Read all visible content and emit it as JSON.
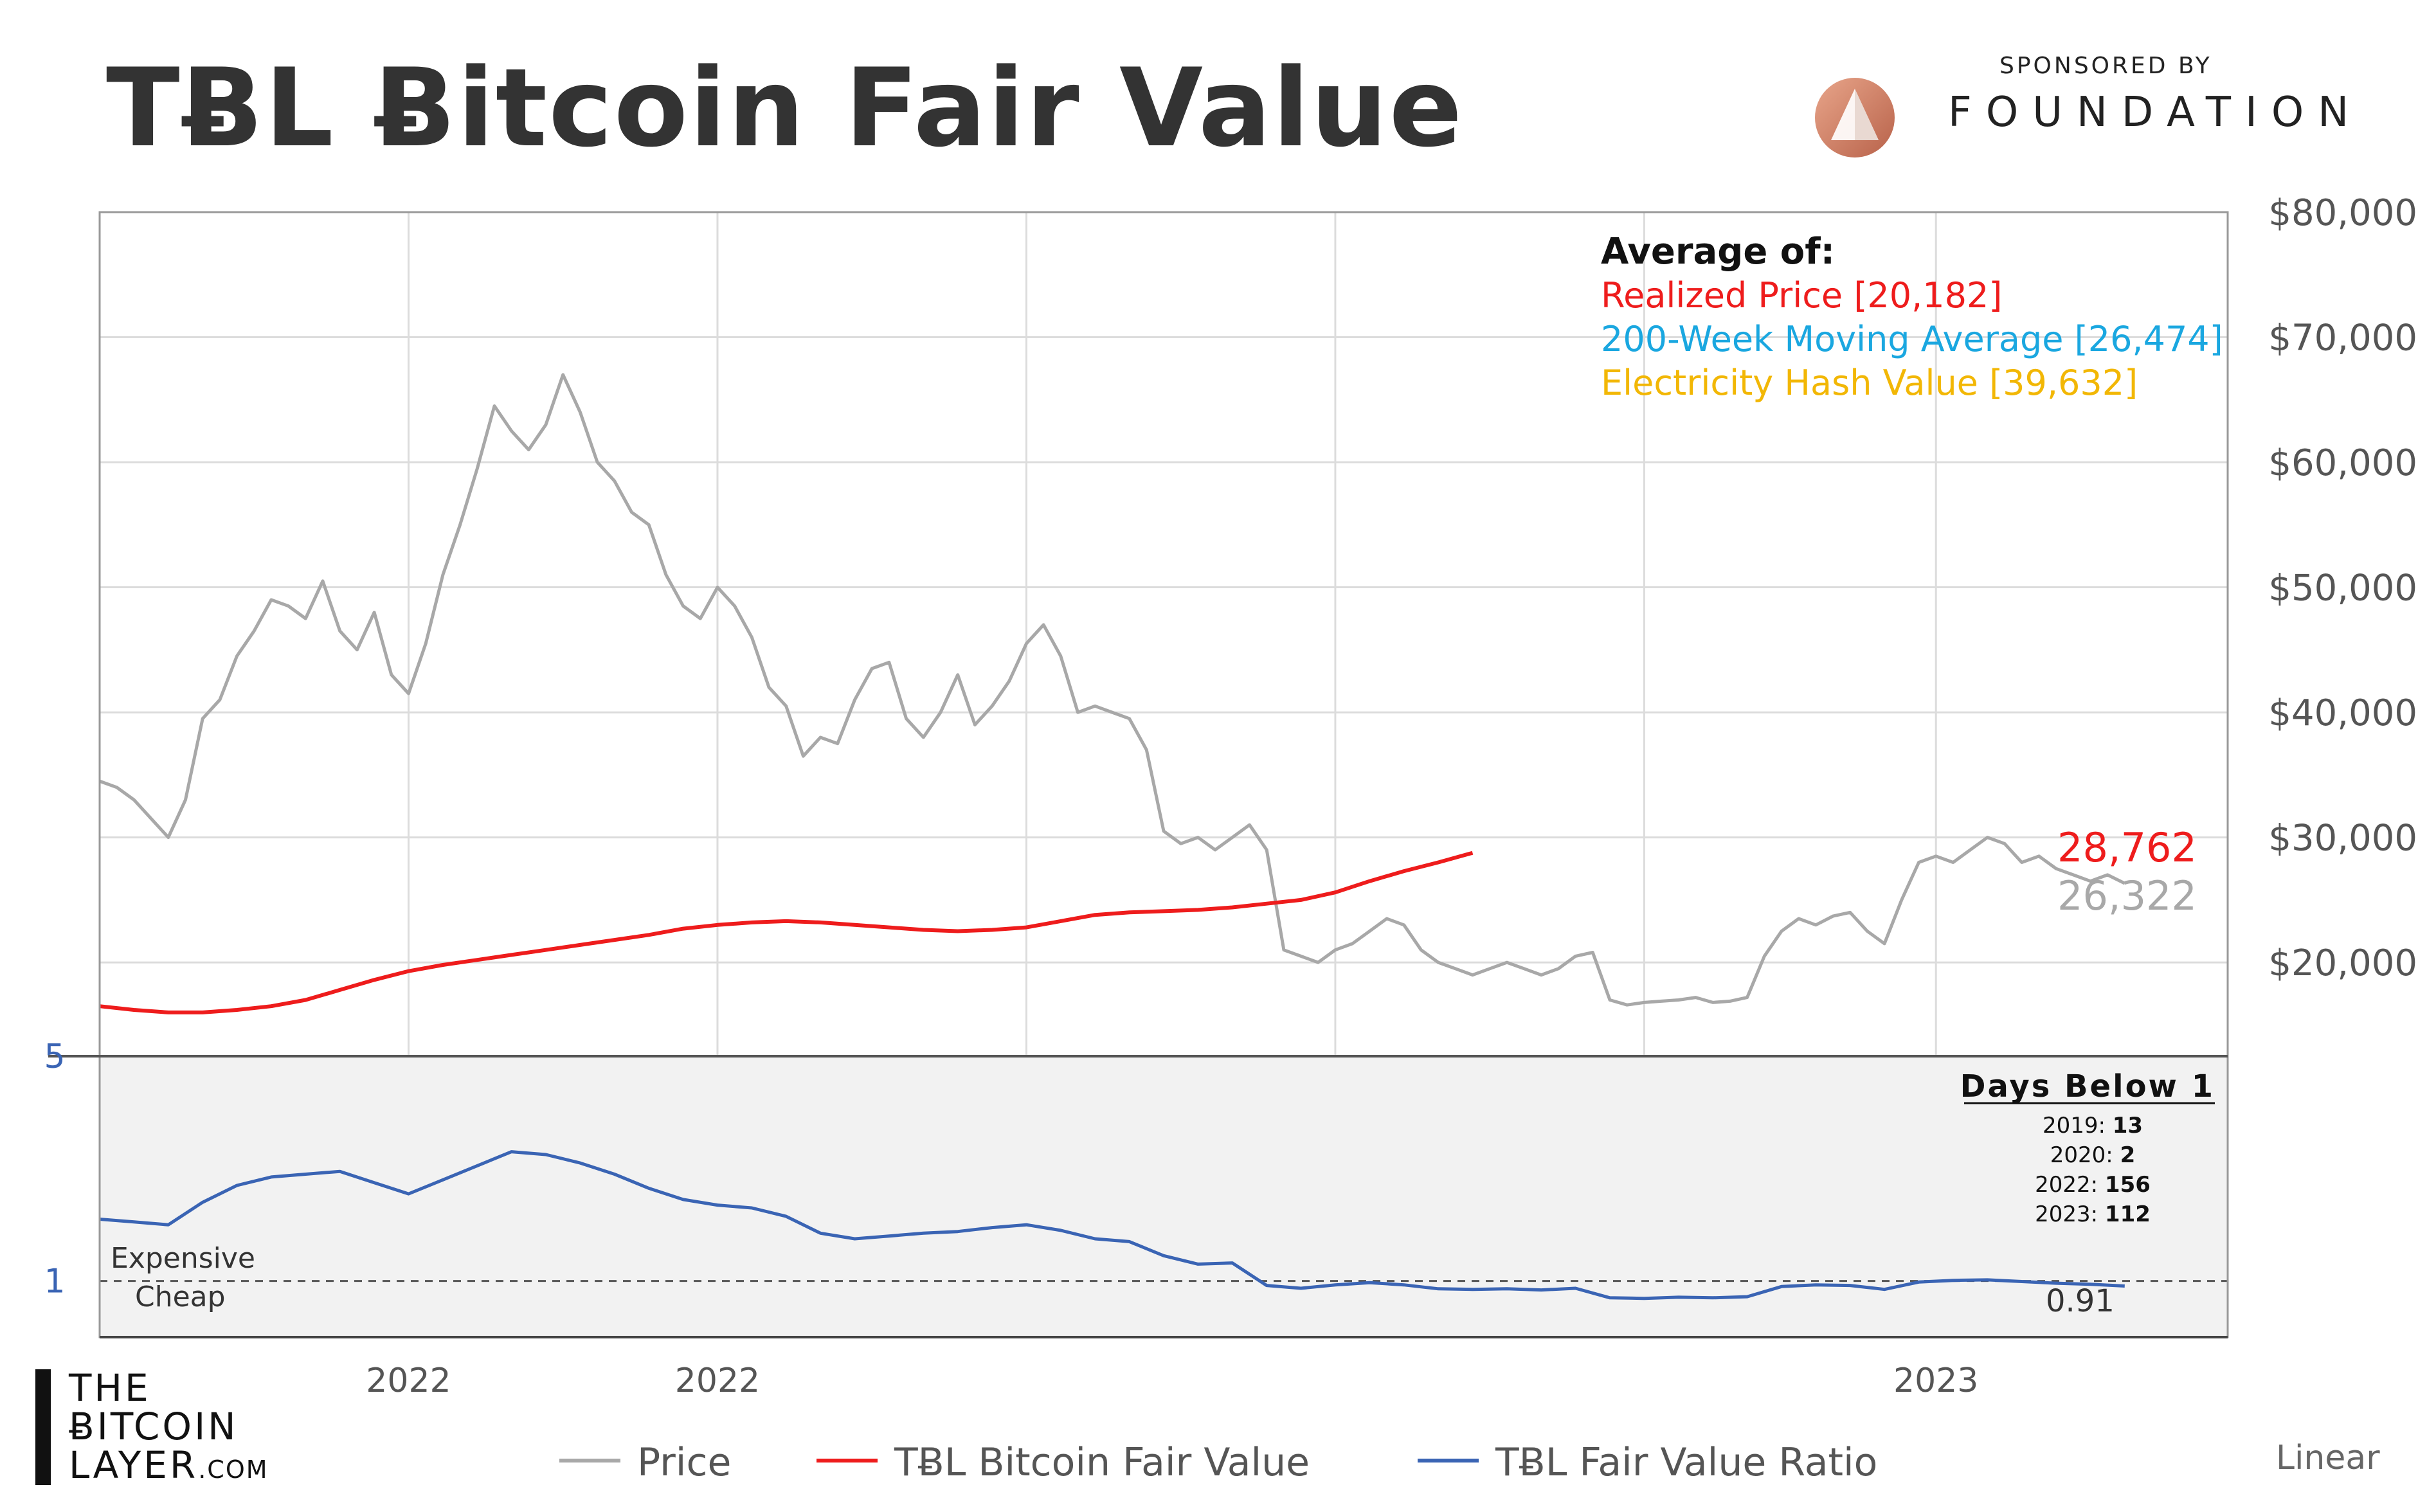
{
  "header": {
    "title": "TɃL Ƀitcoin Fair Value",
    "sponsored_by": "SPONSORED BY",
    "sponsor_name": "FOUNDATION"
  },
  "brand": {
    "line1": "THE",
    "line2": "ɃITCOIN",
    "line3": "LAYER",
    "suffix": ".COM"
  },
  "legend": {
    "price": "Price",
    "fair_value": "TɃL Bitcoin Fair Value",
    "ratio": "TɃL Fair Value Ratio"
  },
  "scale_mode": "Linear",
  "colors": {
    "price": "#a8a8a8",
    "fair_value": "#ee1c1c",
    "ratio": "#3a64b4",
    "realized": "#ee1c1c",
    "ma200": "#1aa7e0",
    "hash": "#f2b705"
  },
  "chart_data": [
    {
      "type": "line",
      "annotation": {
        "heading": "Average of:",
        "lines": [
          {
            "text": "Realized Price [20,182]",
            "color_key": "realized"
          },
          {
            "text": "200-Week Moving Average [26,474]",
            "color_key": "ma200"
          },
          {
            "text": "Electricity Hash Value [39,632]",
            "color_key": "hash"
          }
        ]
      },
      "y_ticks": [
        "$20,000",
        "$30,000",
        "$40,000",
        "$50,000",
        "$60,000",
        "$70,000",
        "$80,000"
      ],
      "y_tick_values": [
        20000,
        30000,
        40000,
        50000,
        60000,
        70000,
        80000
      ],
      "ylim": [
        12500,
        80000
      ],
      "x_tick_labels": [
        {
          "label": "2022",
          "x": 63
        },
        {
          "label": "2022",
          "x": 81
        },
        {
          "label": "2023",
          "x": 152
        }
      ],
      "xlim": [
        45,
        169
      ],
      "grid": true,
      "end_labels": {
        "fair_value": "28,762",
        "price": "26,322"
      },
      "series": [
        {
          "name": "Price",
          "color_key": "price",
          "points": [
            [
              45,
              34500
            ],
            [
              46,
              34000
            ],
            [
              47,
              33000
            ],
            [
              48,
              31500
            ],
            [
              49,
              30000
            ],
            [
              50,
              33000
            ],
            [
              51,
              39500
            ],
            [
              52,
              41000
            ],
            [
              53,
              44500
            ],
            [
              54,
              46500
            ],
            [
              55,
              49000
            ],
            [
              56,
              48500
            ],
            [
              57,
              47500
            ],
            [
              58,
              50500
            ],
            [
              59,
              46500
            ],
            [
              60,
              45000
            ],
            [
              61,
              48000
            ],
            [
              62,
              43000
            ],
            [
              63,
              41500
            ],
            [
              64,
              45500
            ],
            [
              65,
              51000
            ],
            [
              66,
              55000
            ],
            [
              67,
              59500
            ],
            [
              68,
              64500
            ],
            [
              69,
              62500
            ],
            [
              70,
              61000
            ],
            [
              71,
              63000
            ],
            [
              72,
              67000
            ],
            [
              73,
              64000
            ],
            [
              74,
              60000
            ],
            [
              75,
              58500
            ],
            [
              76,
              56000
            ],
            [
              77,
              55000
            ],
            [
              78,
              51000
            ],
            [
              79,
              48500
            ],
            [
              80,
              47500
            ],
            [
              81,
              50000
            ],
            [
              82,
              48500
            ],
            [
              83,
              46000
            ],
            [
              84,
              42000
            ],
            [
              85,
              40500
            ],
            [
              86,
              36500
            ],
            [
              87,
              38000
            ],
            [
              88,
              37500
            ],
            [
              89,
              41000
            ],
            [
              90,
              43500
            ],
            [
              91,
              44000
            ],
            [
              92,
              39500
            ],
            [
              93,
              38000
            ],
            [
              94,
              40000
            ],
            [
              95,
              43000
            ],
            [
              96,
              39000
            ],
            [
              97,
              40500
            ],
            [
              98,
              42500
            ],
            [
              99,
              45500
            ],
            [
              100,
              47000
            ],
            [
              101,
              44500
            ],
            [
              102,
              40000
            ],
            [
              103,
              40500
            ],
            [
              104,
              40000
            ],
            [
              105,
              39500
            ],
            [
              106,
              37000
            ],
            [
              107,
              30500
            ],
            [
              108,
              29500
            ],
            [
              109,
              30000
            ],
            [
              110,
              29000
            ],
            [
              111,
              30000
            ],
            [
              112,
              31000
            ],
            [
              113,
              29000
            ],
            [
              114,
              21000
            ],
            [
              115,
              20500
            ],
            [
              116,
              20000
            ],
            [
              117,
              21000
            ],
            [
              118,
              21500
            ],
            [
              119,
              22500
            ],
            [
              120,
              23500
            ],
            [
              121,
              23000
            ],
            [
              122,
              21000
            ],
            [
              123,
              20000
            ],
            [
              124,
              19500
            ],
            [
              125,
              19000
            ],
            [
              126,
              19500
            ],
            [
              127,
              20000
            ],
            [
              128,
              19500
            ],
            [
              129,
              19000
            ],
            [
              130,
              19500
            ],
            [
              131,
              20500
            ],
            [
              132,
              20800
            ],
            [
              133,
              17000
            ],
            [
              134,
              16600
            ],
            [
              135,
              16800
            ],
            [
              136,
              16900
            ],
            [
              137,
              17000
            ],
            [
              138,
              17200
            ],
            [
              139,
              16800
            ],
            [
              140,
              16900
            ],
            [
              141,
              17200
            ],
            [
              142,
              20500
            ],
            [
              143,
              22500
            ],
            [
              144,
              23500
            ],
            [
              145,
              23000
            ],
            [
              146,
              23700
            ],
            [
              147,
              24000
            ],
            [
              148,
              22500
            ],
            [
              149,
              21500
            ],
            [
              150,
              25000
            ],
            [
              151,
              28000
            ],
            [
              152,
              28500
            ],
            [
              153,
              28000
            ],
            [
              154,
              29000
            ],
            [
              155,
              30000
            ],
            [
              156,
              29500
            ],
            [
              157,
              28000
            ],
            [
              158,
              28500
            ],
            [
              159,
              27500
            ],
            [
              160,
              27000
            ],
            [
              161,
              26500
            ],
            [
              162,
              27000
            ],
            [
              163,
              26322
            ]
          ]
        },
        {
          "name": "TɃL Bitcoin Fair Value",
          "color_key": "fair_value",
          "points": [
            [
              45,
              16500
            ],
            [
              47,
              16200
            ],
            [
              49,
              16000
            ],
            [
              51,
              16000
            ],
            [
              53,
              16200
            ],
            [
              55,
              16500
            ],
            [
              57,
              17000
            ],
            [
              59,
              17800
            ],
            [
              61,
              18600
            ],
            [
              63,
              19300
            ],
            [
              65,
              19800
            ],
            [
              67,
              20200
            ],
            [
              69,
              20600
            ],
            [
              71,
              21000
            ],
            [
              73,
              21400
            ],
            [
              75,
              21800
            ],
            [
              77,
              22200
            ],
            [
              79,
              22700
            ],
            [
              81,
              23000
            ],
            [
              83,
              23200
            ],
            [
              85,
              23300
            ],
            [
              87,
              23200
            ],
            [
              89,
              23000
            ],
            [
              91,
              22800
            ],
            [
              93,
              22600
            ],
            [
              95,
              22500
            ],
            [
              97,
              22600
            ],
            [
              99,
              22800
            ],
            [
              101,
              23300
            ],
            [
              103,
              23800
            ],
            [
              105,
              24000
            ],
            [
              107,
              24100
            ],
            [
              109,
              24200
            ],
            [
              111,
              24400
            ],
            [
              113,
              24700
            ],
            [
              115,
              25000
            ],
            [
              117,
              25600
            ],
            [
              119,
              26500
            ],
            [
              121,
              27300
            ],
            [
              123,
              28000
            ],
            [
              125,
              28762
            ]
          ]
        }
      ]
    },
    {
      "type": "line",
      "y_ticks": [
        "5",
        "1"
      ],
      "y_tick_values": [
        5,
        1
      ],
      "ylim": [
        0,
        5
      ],
      "reference_line": 1,
      "region_labels": {
        "above": "Expensive",
        "below": "Cheap"
      },
      "end_label": "0.91",
      "days_below_1": {
        "heading": "Days Below 1",
        "rows": [
          {
            "label": "2019:",
            "value": "13"
          },
          {
            "label": "2020:",
            "value": "2"
          },
          {
            "label": "2022:",
            "value": "156"
          },
          {
            "label": "2023:",
            "value": "112"
          }
        ]
      },
      "series": [
        {
          "name": "TɃL Fair Value Ratio",
          "color_key": "ratio",
          "points": [
            [
              45,
              2.1
            ],
            [
              47,
              2.05
            ],
            [
              49,
              2.0
            ],
            [
              51,
              2.4
            ],
            [
              53,
              2.7
            ],
            [
              55,
              2.85
            ],
            [
              57,
              2.9
            ],
            [
              59,
              2.95
            ],
            [
              61,
              2.75
            ],
            [
              63,
              2.55
            ],
            [
              65,
              2.8
            ],
            [
              67,
              3.05
            ],
            [
              69,
              3.3
            ],
            [
              71,
              3.25
            ],
            [
              73,
              3.1
            ],
            [
              75,
              2.9
            ],
            [
              77,
              2.65
            ],
            [
              79,
              2.45
            ],
            [
              81,
              2.35
            ],
            [
              83,
              2.3
            ],
            [
              85,
              2.15
            ],
            [
              87,
              1.85
            ],
            [
              89,
              1.75
            ],
            [
              91,
              1.8
            ],
            [
              93,
              1.85
            ],
            [
              95,
              1.88
            ],
            [
              97,
              1.95
            ],
            [
              99,
              2.0
            ],
            [
              101,
              1.9
            ],
            [
              103,
              1.75
            ],
            [
              105,
              1.7
            ],
            [
              107,
              1.45
            ],
            [
              109,
              1.3
            ],
            [
              111,
              1.32
            ],
            [
              113,
              0.92
            ],
            [
              115,
              0.87
            ],
            [
              117,
              0.93
            ],
            [
              119,
              0.97
            ],
            [
              121,
              0.93
            ],
            [
              123,
              0.86
            ],
            [
              125,
              0.85
            ],
            [
              127,
              0.86
            ],
            [
              129,
              0.84
            ],
            [
              131,
              0.87
            ],
            [
              133,
              0.7
            ],
            [
              135,
              0.69
            ],
            [
              137,
              0.71
            ],
            [
              139,
              0.7
            ],
            [
              141,
              0.72
            ],
            [
              143,
              0.9
            ],
            [
              145,
              0.93
            ],
            [
              147,
              0.92
            ],
            [
              149,
              0.85
            ],
            [
              151,
              0.98
            ],
            [
              153,
              1.01
            ],
            [
              155,
              1.02
            ],
            [
              157,
              0.99
            ],
            [
              159,
              0.96
            ],
            [
              161,
              0.94
            ],
            [
              163,
              0.91
            ]
          ]
        }
      ]
    }
  ]
}
